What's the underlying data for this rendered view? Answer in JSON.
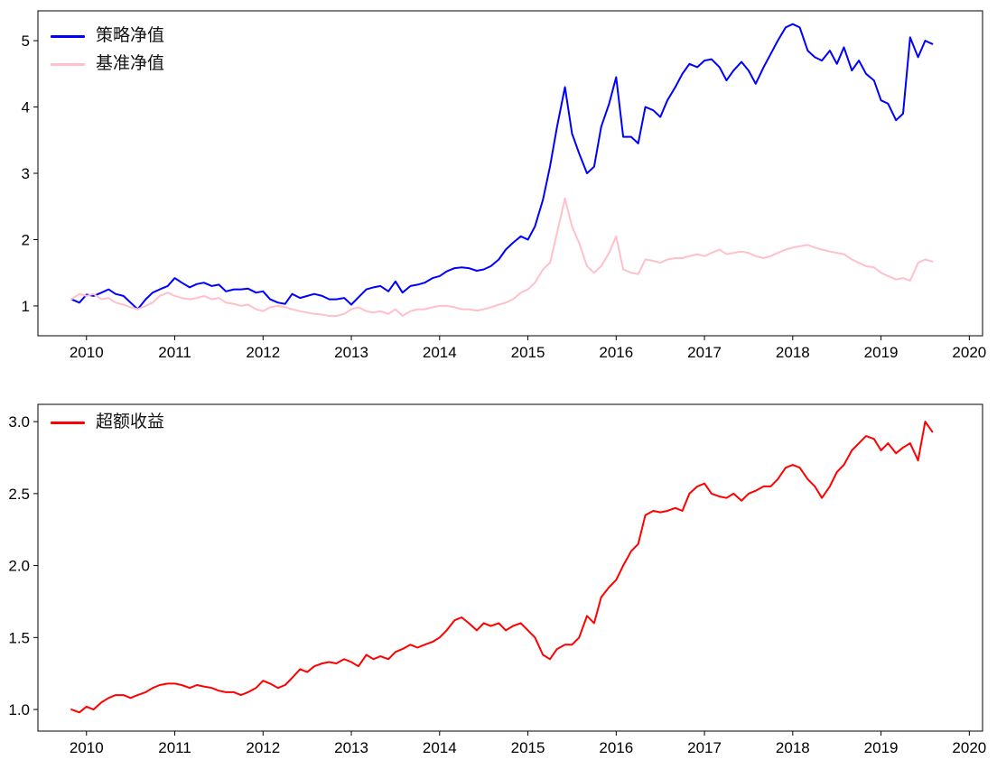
{
  "figure": {
    "background": "#ffffff",
    "axis_color": "#000000"
  },
  "chart_data": [
    {
      "type": "line",
      "title": "",
      "xlabel": "",
      "ylabel": "",
      "grid": false,
      "legend": {
        "position": "upper-left",
        "frame": false
      },
      "axis_color": "#000000",
      "xlim": [
        2009.45,
        2020.15
      ],
      "ylim": [
        0.55,
        5.45
      ],
      "xticks": [
        2010,
        2011,
        2012,
        2013,
        2014,
        2015,
        2016,
        2017,
        2018,
        2019,
        2020
      ],
      "xtick_labels": [
        "2010",
        "2011",
        "2012",
        "2013",
        "2014",
        "2015",
        "2016",
        "2017",
        "2018",
        "2019",
        "2020"
      ],
      "yticks": [
        1,
        2,
        3,
        4,
        5
      ],
      "ytick_labels": [
        "1",
        "2",
        "3",
        "4",
        "5"
      ],
      "x": [
        2009.83,
        2009.92,
        2010.0,
        2010.08,
        2010.17,
        2010.25,
        2010.33,
        2010.42,
        2010.5,
        2010.58,
        2010.67,
        2010.75,
        2010.83,
        2010.92,
        2011.0,
        2011.08,
        2011.17,
        2011.25,
        2011.33,
        2011.42,
        2011.5,
        2011.58,
        2011.67,
        2011.75,
        2011.83,
        2011.92,
        2012.0,
        2012.08,
        2012.17,
        2012.25,
        2012.33,
        2012.42,
        2012.5,
        2012.58,
        2012.67,
        2012.75,
        2012.83,
        2012.92,
        2013.0,
        2013.08,
        2013.17,
        2013.25,
        2013.33,
        2013.42,
        2013.5,
        2013.58,
        2013.67,
        2013.75,
        2013.83,
        2013.92,
        2014.0,
        2014.08,
        2014.17,
        2014.25,
        2014.33,
        2014.42,
        2014.5,
        2014.58,
        2014.67,
        2014.75,
        2014.83,
        2014.92,
        2015.0,
        2015.08,
        2015.17,
        2015.25,
        2015.33,
        2015.42,
        2015.5,
        2015.58,
        2015.67,
        2015.75,
        2015.83,
        2015.92,
        2016.0,
        2016.08,
        2016.17,
        2016.25,
        2016.33,
        2016.42,
        2016.5,
        2016.58,
        2016.67,
        2016.75,
        2016.83,
        2016.92,
        2017.0,
        2017.08,
        2017.17,
        2017.25,
        2017.33,
        2017.42,
        2017.5,
        2017.58,
        2017.67,
        2017.75,
        2017.83,
        2017.92,
        2018.0,
        2018.08,
        2018.17,
        2018.25,
        2018.33,
        2018.42,
        2018.5,
        2018.58,
        2018.67,
        2018.75,
        2018.83,
        2018.92,
        2019.0,
        2019.08,
        2019.17,
        2019.25,
        2019.33,
        2019.42,
        2019.5,
        2019.58
      ],
      "series": [
        {
          "id": "strategy",
          "name": "策略净值",
          "color": "#0000ff",
          "width": 2,
          "values": [
            1.1,
            1.05,
            1.17,
            1.15,
            1.2,
            1.25,
            1.18,
            1.15,
            1.05,
            0.95,
            1.1,
            1.2,
            1.25,
            1.3,
            1.42,
            1.35,
            1.28,
            1.33,
            1.35,
            1.3,
            1.32,
            1.22,
            1.25,
            1.25,
            1.26,
            1.2,
            1.22,
            1.1,
            1.05,
            1.03,
            1.18,
            1.12,
            1.15,
            1.18,
            1.15,
            1.1,
            1.1,
            1.12,
            1.02,
            1.13,
            1.25,
            1.28,
            1.3,
            1.22,
            1.37,
            1.2,
            1.3,
            1.32,
            1.35,
            1.42,
            1.45,
            1.52,
            1.57,
            1.58,
            1.57,
            1.53,
            1.55,
            1.6,
            1.7,
            1.85,
            1.95,
            2.05,
            2.0,
            2.2,
            2.6,
            3.1,
            3.7,
            4.3,
            3.6,
            3.3,
            3.0,
            3.1,
            3.7,
            4.05,
            4.45,
            3.55,
            3.55,
            3.45,
            4.0,
            3.95,
            3.85,
            4.1,
            4.3,
            4.5,
            4.65,
            4.6,
            4.7,
            4.72,
            4.6,
            4.4,
            4.55,
            4.68,
            4.55,
            4.35,
            4.6,
            4.8,
            5.0,
            5.2,
            5.25,
            5.2,
            4.85,
            4.75,
            4.7,
            4.85,
            4.65,
            4.9,
            4.55,
            4.7,
            4.5,
            4.4,
            4.1,
            4.05,
            3.8,
            3.9,
            5.05,
            4.75,
            5.0,
            4.95
          ]
        },
        {
          "id": "benchmark",
          "name": "基准净值",
          "color": "#ffc0cb",
          "width": 2,
          "values": [
            1.1,
            1.18,
            1.15,
            1.18,
            1.1,
            1.12,
            1.05,
            1.02,
            0.98,
            0.95,
            1.0,
            1.05,
            1.15,
            1.2,
            1.15,
            1.12,
            1.1,
            1.12,
            1.15,
            1.1,
            1.12,
            1.05,
            1.03,
            1.0,
            1.02,
            0.95,
            0.92,
            0.98,
            1.0,
            0.98,
            0.95,
            0.92,
            0.9,
            0.88,
            0.87,
            0.85,
            0.85,
            0.88,
            0.95,
            0.98,
            0.92,
            0.9,
            0.92,
            0.88,
            0.95,
            0.85,
            0.92,
            0.95,
            0.95,
            0.98,
            1.0,
            1.0,
            0.98,
            0.95,
            0.95,
            0.93,
            0.95,
            0.98,
            1.02,
            1.05,
            1.1,
            1.2,
            1.25,
            1.35,
            1.55,
            1.65,
            2.1,
            2.62,
            2.2,
            1.95,
            1.6,
            1.5,
            1.6,
            1.8,
            2.05,
            1.55,
            1.5,
            1.48,
            1.7,
            1.68,
            1.65,
            1.7,
            1.72,
            1.72,
            1.75,
            1.78,
            1.75,
            1.8,
            1.85,
            1.78,
            1.8,
            1.82,
            1.8,
            1.75,
            1.72,
            1.75,
            1.8,
            1.85,
            1.88,
            1.9,
            1.92,
            1.88,
            1.85,
            1.82,
            1.8,
            1.78,
            1.7,
            1.65,
            1.6,
            1.58,
            1.5,
            1.45,
            1.4,
            1.42,
            1.38,
            1.65,
            1.7,
            1.67
          ]
        }
      ]
    },
    {
      "type": "line",
      "title": "",
      "xlabel": "",
      "ylabel": "",
      "grid": false,
      "legend": {
        "position": "upper-left",
        "frame": false
      },
      "axis_color": "#000000",
      "xlim": [
        2009.45,
        2020.15
      ],
      "ylim": [
        0.85,
        3.12
      ],
      "xticks": [
        2010,
        2011,
        2012,
        2013,
        2014,
        2015,
        2016,
        2017,
        2018,
        2019,
        2020
      ],
      "xtick_labels": [
        "2010",
        "2011",
        "2012",
        "2013",
        "2014",
        "2015",
        "2016",
        "2017",
        "2018",
        "2019",
        "2020"
      ],
      "yticks": [
        1.0,
        1.5,
        2.0,
        2.5,
        3.0
      ],
      "ytick_labels": [
        "1.0",
        "1.5",
        "2.0",
        "2.5",
        "3.0"
      ],
      "x": [
        2009.83,
        2009.92,
        2010.0,
        2010.08,
        2010.17,
        2010.25,
        2010.33,
        2010.42,
        2010.5,
        2010.58,
        2010.67,
        2010.75,
        2010.83,
        2010.92,
        2011.0,
        2011.08,
        2011.17,
        2011.25,
        2011.33,
        2011.42,
        2011.5,
        2011.58,
        2011.67,
        2011.75,
        2011.83,
        2011.92,
        2012.0,
        2012.08,
        2012.17,
        2012.25,
        2012.33,
        2012.42,
        2012.5,
        2012.58,
        2012.67,
        2012.75,
        2012.83,
        2012.92,
        2013.0,
        2013.08,
        2013.17,
        2013.25,
        2013.33,
        2013.42,
        2013.5,
        2013.58,
        2013.67,
        2013.75,
        2013.83,
        2013.92,
        2014.0,
        2014.08,
        2014.17,
        2014.25,
        2014.33,
        2014.42,
        2014.5,
        2014.58,
        2014.67,
        2014.75,
        2014.83,
        2014.92,
        2015.0,
        2015.08,
        2015.17,
        2015.25,
        2015.33,
        2015.42,
        2015.5,
        2015.58,
        2015.67,
        2015.75,
        2015.83,
        2015.92,
        2016.0,
        2016.08,
        2016.17,
        2016.25,
        2016.33,
        2016.42,
        2016.5,
        2016.58,
        2016.67,
        2016.75,
        2016.83,
        2016.92,
        2017.0,
        2017.08,
        2017.17,
        2017.25,
        2017.33,
        2017.42,
        2017.5,
        2017.58,
        2017.67,
        2017.75,
        2017.83,
        2017.92,
        2018.0,
        2018.08,
        2018.17,
        2018.25,
        2018.33,
        2018.42,
        2018.5,
        2018.58,
        2018.67,
        2018.75,
        2018.83,
        2018.92,
        2019.0,
        2019.08,
        2019.17,
        2019.25,
        2019.33,
        2019.42,
        2019.5,
        2019.58
      ],
      "series": [
        {
          "id": "excess",
          "name": "超额收益",
          "color": "#ff0000",
          "width": 2,
          "values": [
            1.0,
            0.98,
            1.02,
            1.0,
            1.05,
            1.08,
            1.1,
            1.1,
            1.08,
            1.1,
            1.12,
            1.15,
            1.17,
            1.18,
            1.18,
            1.17,
            1.15,
            1.17,
            1.16,
            1.15,
            1.13,
            1.12,
            1.12,
            1.1,
            1.12,
            1.15,
            1.2,
            1.18,
            1.15,
            1.17,
            1.22,
            1.28,
            1.26,
            1.3,
            1.32,
            1.33,
            1.32,
            1.35,
            1.33,
            1.3,
            1.38,
            1.35,
            1.37,
            1.35,
            1.4,
            1.42,
            1.45,
            1.43,
            1.45,
            1.47,
            1.5,
            1.55,
            1.62,
            1.64,
            1.6,
            1.55,
            1.6,
            1.58,
            1.6,
            1.55,
            1.58,
            1.6,
            1.55,
            1.5,
            1.38,
            1.35,
            1.42,
            1.45,
            1.45,
            1.5,
            1.65,
            1.6,
            1.78,
            1.85,
            1.9,
            2.0,
            2.1,
            2.15,
            2.35,
            2.38,
            2.37,
            2.38,
            2.4,
            2.38,
            2.5,
            2.55,
            2.57,
            2.5,
            2.48,
            2.47,
            2.5,
            2.45,
            2.5,
            2.52,
            2.55,
            2.55,
            2.6,
            2.68,
            2.7,
            2.68,
            2.6,
            2.55,
            2.47,
            2.55,
            2.65,
            2.7,
            2.8,
            2.85,
            2.9,
            2.88,
            2.8,
            2.85,
            2.78,
            2.82,
            2.85,
            2.73,
            3.0,
            2.93
          ]
        }
      ]
    }
  ]
}
